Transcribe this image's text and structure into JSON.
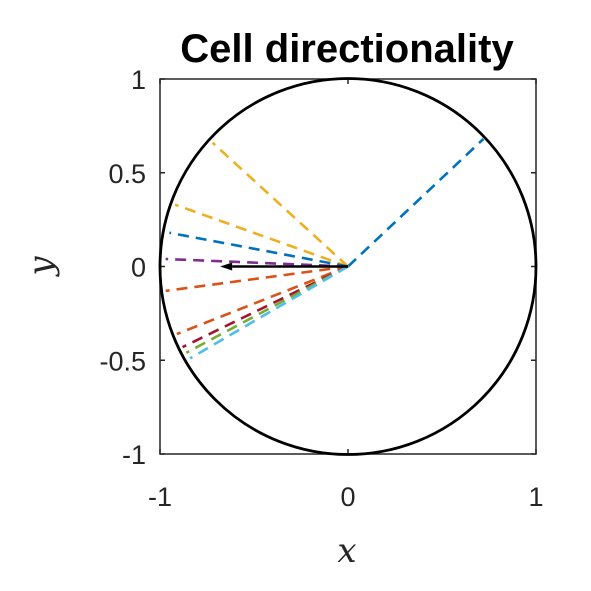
{
  "chart_data": {
    "type": "line",
    "title": "Cell directionality",
    "xlabel": "x",
    "ylabel": "y",
    "xlim": [
      -1,
      1
    ],
    "ylim": [
      -1,
      1
    ],
    "grid": false,
    "x_ticks": [
      "-1",
      "0",
      "1"
    ],
    "y_ticks": [
      "1",
      "0.5",
      "0",
      "-0.5",
      "-1"
    ],
    "x_tick_values": [
      -1,
      0,
      1
    ],
    "y_tick_values": [
      1,
      0.5,
      0,
      -0.5,
      -1
    ],
    "unit_circle": {
      "center": [
        0,
        0
      ],
      "radius": 1,
      "color": "#000000"
    },
    "rays": [
      {
        "x": 0.72,
        "y": 0.68,
        "color": "#0072BD"
      },
      {
        "x": -0.72,
        "y": 0.66,
        "color": "#EDB120"
      },
      {
        "x": -0.92,
        "y": 0.33,
        "color": "#EDB120"
      },
      {
        "x": -0.95,
        "y": 0.18,
        "color": "#0072BD"
      },
      {
        "x": -0.97,
        "y": 0.04,
        "color": "#7E2F8E"
      },
      {
        "x": -0.97,
        "y": -0.13,
        "color": "#D95319"
      },
      {
        "x": -0.91,
        "y": -0.36,
        "color": "#D95319"
      },
      {
        "x": -0.88,
        "y": -0.43,
        "color": "#A2142F"
      },
      {
        "x": -0.86,
        "y": -0.46,
        "color": "#77AC30"
      },
      {
        "x": -0.84,
        "y": -0.49,
        "color": "#4DBEEE"
      }
    ],
    "mean_vector": {
      "x": -0.68,
      "y": 0.0,
      "color": "#000000"
    }
  }
}
